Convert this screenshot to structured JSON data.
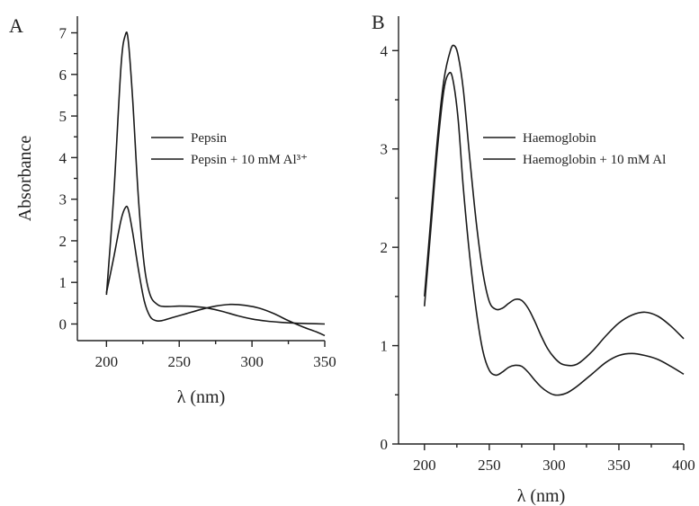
{
  "chart_data": [
    {
      "type": "line",
      "panel_label": "A",
      "xlabel": "λ (nm)",
      "ylabel": "Absorbance",
      "xlim": [
        180,
        350
      ],
      "ylim": [
        -0.4,
        7.4
      ],
      "xticks": [
        200,
        250,
        300,
        350
      ],
      "yticks": [
        0,
        1,
        2,
        3,
        4,
        5,
        6,
        7
      ],
      "legend_position": "center-right",
      "series": [
        {
          "name": "Pepsin",
          "x": [
            200,
            205,
            210,
            213,
            215,
            218,
            222,
            226,
            230,
            235,
            240,
            250,
            260,
            270,
            280,
            290,
            300,
            310,
            320,
            330,
            340,
            350
          ],
          "y": [
            0.7,
            3.1,
            6.2,
            6.95,
            6.8,
            5.4,
            3.0,
            1.4,
            0.7,
            0.47,
            0.42,
            0.43,
            0.42,
            0.38,
            0.3,
            0.2,
            0.12,
            0.07,
            0.04,
            0.02,
            0.01,
            0.0
          ]
        },
        {
          "name": "Pepsin + 10 mM Al³⁺",
          "x": [
            200,
            205,
            210,
            213,
            215,
            218,
            222,
            226,
            230,
            234,
            238,
            245,
            255,
            265,
            275,
            285,
            295,
            305,
            315,
            325,
            335,
            345,
            350
          ],
          "y": [
            0.75,
            1.6,
            2.5,
            2.8,
            2.75,
            2.2,
            1.3,
            0.55,
            0.18,
            0.08,
            0.08,
            0.15,
            0.25,
            0.35,
            0.43,
            0.47,
            0.45,
            0.38,
            0.25,
            0.08,
            -0.07,
            -0.2,
            -0.28
          ]
        }
      ]
    },
    {
      "type": "line",
      "panel_label": "B",
      "xlabel": "λ (nm)",
      "ylabel": "",
      "xlim": [
        180,
        400
      ],
      "ylim": [
        0,
        4.35
      ],
      "xticks": [
        200,
        250,
        300,
        350,
        400
      ],
      "yticks": [
        0,
        1,
        2,
        3,
        4
      ],
      "legend_position": "top-right",
      "series": [
        {
          "name": "Haemoglobin",
          "x": [
            200,
            205,
            210,
            215,
            219,
            222,
            226,
            230,
            235,
            240,
            245,
            250,
            255,
            260,
            265,
            270,
            275,
            280,
            285,
            290,
            295,
            300,
            305,
            310,
            315,
            320,
            330,
            340,
            350,
            360,
            370,
            380,
            390,
            400
          ],
          "y": [
            1.4,
            2.2,
            3.0,
            3.6,
            3.77,
            3.7,
            3.3,
            2.6,
            1.9,
            1.35,
            0.95,
            0.75,
            0.7,
            0.73,
            0.78,
            0.8,
            0.79,
            0.73,
            0.65,
            0.58,
            0.53,
            0.5,
            0.5,
            0.52,
            0.56,
            0.61,
            0.72,
            0.83,
            0.9,
            0.92,
            0.9,
            0.86,
            0.79,
            0.71
          ]
        },
        {
          "name": "Haemoglobin + 10 mM Al",
          "x": [
            200,
            205,
            210,
            215,
            220,
            223,
            226,
            230,
            235,
            240,
            245,
            250,
            255,
            260,
            265,
            270,
            275,
            280,
            285,
            290,
            295,
            300,
            305,
            310,
            315,
            320,
            330,
            340,
            350,
            360,
            370,
            380,
            390,
            400
          ],
          "y": [
            1.5,
            2.3,
            3.1,
            3.7,
            4.0,
            4.05,
            3.95,
            3.6,
            2.9,
            2.25,
            1.75,
            1.45,
            1.37,
            1.38,
            1.43,
            1.47,
            1.46,
            1.38,
            1.25,
            1.1,
            0.97,
            0.88,
            0.82,
            0.8,
            0.8,
            0.83,
            0.95,
            1.1,
            1.23,
            1.31,
            1.34,
            1.3,
            1.2,
            1.07
          ]
        }
      ]
    }
  ]
}
